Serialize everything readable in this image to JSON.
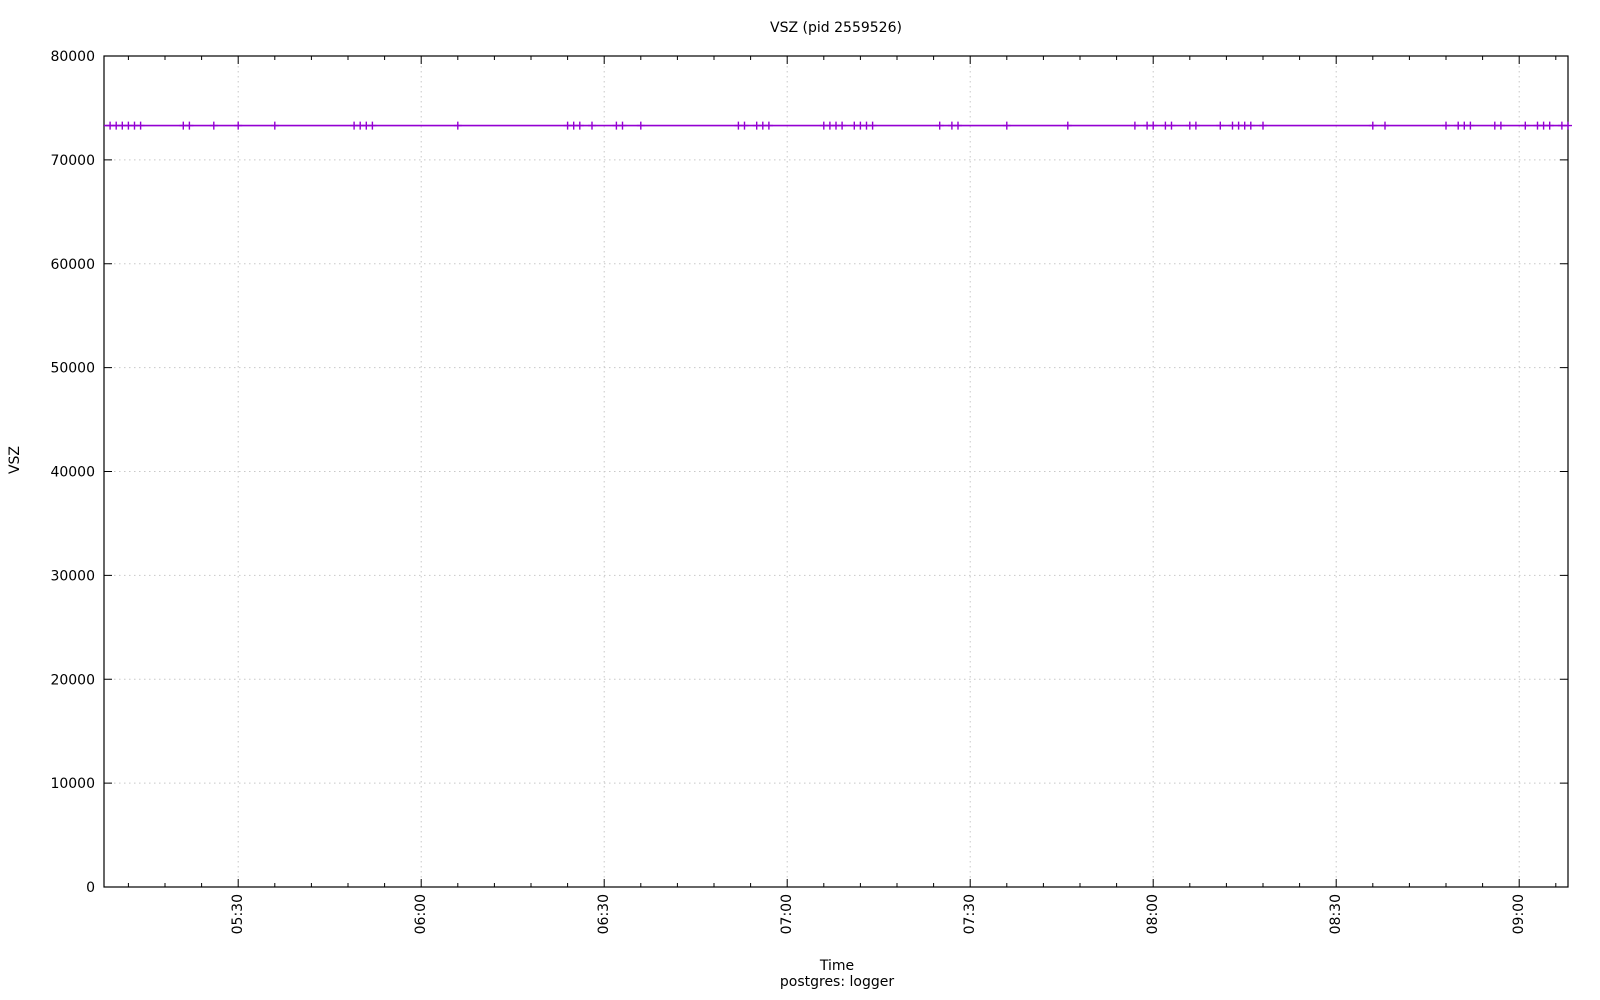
{
  "chart_data": {
    "type": "line",
    "title": "VSZ (pid 2559526)",
    "xlabel": "Time",
    "ylabel": "VSZ",
    "grid": true,
    "legend_position": "below-center",
    "background": "#ffffff",
    "grid_color": "#c8c8c8",
    "axis_color": "#000000",
    "x_axis": {
      "type": "time",
      "start": "05:08",
      "end": "09:08",
      "major_tick_interval_min": 30,
      "minor_tick_interval_min": 6,
      "tick_labels": [
        "05:30",
        "06:00",
        "06:30",
        "07:00",
        "07:30",
        "08:00",
        "08:30",
        "09:00"
      ],
      "labels_rotated_deg": -90
    },
    "y_axis": {
      "min": 0,
      "max": 80000,
      "tick_step": 10000,
      "tick_labels": [
        "0",
        "10000",
        "20000",
        "30000",
        "40000",
        "50000",
        "60000",
        "70000",
        "80000"
      ]
    },
    "series": [
      {
        "name": "postgres: logger",
        "color": "#9400d3",
        "marker": "plus",
        "constant_value": 73300,
        "marker_times": [
          "05:09",
          "05:10",
          "05:11",
          "05:12",
          "05:13",
          "05:14",
          "05:21",
          "05:22",
          "05:26",
          "05:30",
          "05:36",
          "05:49",
          "05:50",
          "05:51",
          "05:52",
          "06:06",
          "06:24",
          "06:25",
          "06:26",
          "06:28",
          "06:32",
          "06:33",
          "06:36",
          "06:52",
          "06:53",
          "06:55",
          "06:56",
          "06:57",
          "07:06",
          "07:07",
          "07:08",
          "07:09",
          "07:11",
          "07:12",
          "07:13",
          "07:14",
          "07:25",
          "07:27",
          "07:28",
          "07:36",
          "07:46",
          "07:57",
          "07:59",
          "08:00",
          "08:02",
          "08:03",
          "08:06",
          "08:07",
          "08:11",
          "08:13",
          "08:14",
          "08:15",
          "08:16",
          "08:18",
          "08:36",
          "08:38",
          "08:48",
          "08:50",
          "08:51",
          "08:52",
          "08:56",
          "08:57",
          "09:01",
          "09:03",
          "09:04",
          "09:05",
          "09:07",
          "09:08"
        ]
      }
    ]
  }
}
